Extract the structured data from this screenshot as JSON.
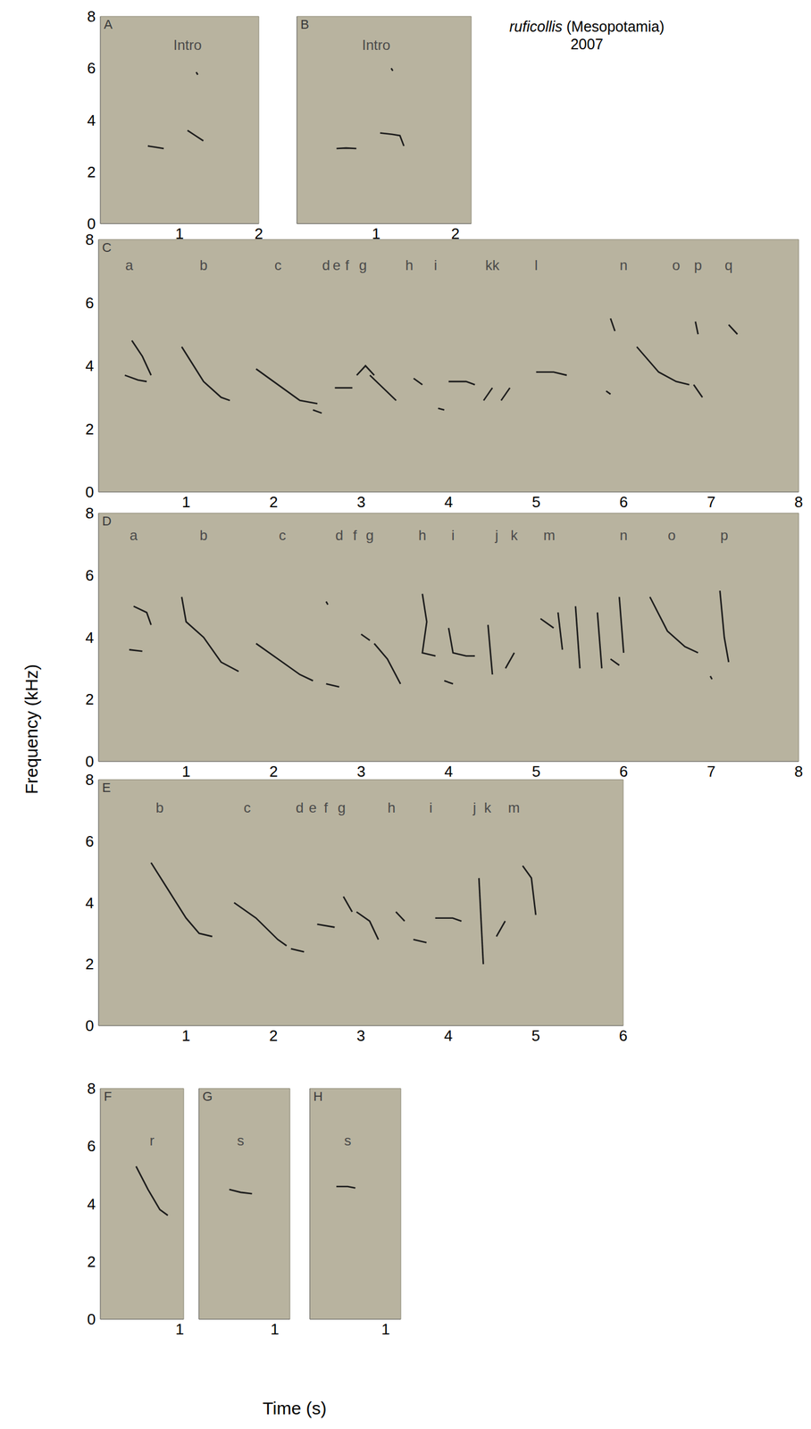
{
  "title": "ruficollis (Mesopotamia)",
  "subtitle": "2007",
  "y_label": "Frequency (kHz)",
  "x_label": "Time (s)",
  "chart_data": [
    {
      "type": "line",
      "label": "A",
      "color": "#1c1c1c",
      "xlim": [
        0,
        2
      ],
      "xticks": [
        1,
        2
      ],
      "ylim": [
        0,
        8
      ],
      "yticks": [
        0,
        2,
        4,
        6,
        8
      ],
      "series": [
        {
          "x": [
            0.6,
            0.7,
            0.8
          ],
          "values": [
            3.0,
            2.95,
            2.9
          ]
        },
        {
          "x": [
            1.1,
            1.2,
            1.3
          ],
          "values": [
            3.6,
            3.4,
            3.2
          ]
        },
        {
          "x": [
            1.21,
            1.23
          ],
          "values": [
            5.85,
            5.75
          ]
        }
      ],
      "annotations": [
        {
          "text": "Intro",
          "x": 1.1,
          "y": 6.9
        }
      ]
    },
    {
      "type": "line",
      "label": "B",
      "color": "#1c1c1c",
      "tick_labels": "x",
      "xlim": [
        0,
        2.2
      ],
      "xticks": [
        1,
        2
      ],
      "ylim": [
        0,
        8
      ],
      "series": [
        {
          "x": [
            0.5,
            0.62,
            0.75
          ],
          "values": [
            2.9,
            2.92,
            2.9
          ]
        },
        {
          "x": [
            1.05,
            1.2,
            1.3,
            1.35
          ],
          "values": [
            3.5,
            3.45,
            3.4,
            3.0
          ]
        },
        {
          "x": [
            1.19,
            1.21
          ],
          "values": [
            6.0,
            5.9
          ]
        }
      ],
      "annotations": [
        {
          "text": "Intro",
          "x": 1.0,
          "y": 6.9
        }
      ]
    },
    {
      "type": "line",
      "label": "C",
      "color": "#1c1c1c",
      "xlim": [
        0,
        8
      ],
      "xticks": [
        1,
        2,
        3,
        4,
        5,
        6,
        7,
        8
      ],
      "ylim": [
        0,
        8
      ],
      "yticks": [
        0,
        2,
        4,
        6,
        8
      ],
      "series": [
        {
          "x": [
            0.38,
            0.5,
            0.6
          ],
          "values": [
            4.8,
            4.3,
            3.7
          ]
        },
        {
          "x": [
            0.3,
            0.45,
            0.55
          ],
          "values": [
            3.7,
            3.55,
            3.5
          ]
        },
        {
          "x": [
            0.95,
            1.2,
            1.4,
            1.5
          ],
          "values": [
            4.6,
            3.5,
            3.0,
            2.9
          ]
        },
        {
          "x": [
            1.8,
            2.0,
            2.3,
            2.5
          ],
          "values": [
            3.9,
            3.5,
            2.9,
            2.8
          ]
        },
        {
          "x": [
            2.45,
            2.55
          ],
          "values": [
            2.6,
            2.5
          ]
        },
        {
          "x": [
            2.7,
            2.9
          ],
          "values": [
            3.3,
            3.3
          ]
        },
        {
          "x": [
            2.95,
            3.05,
            3.15
          ],
          "values": [
            3.7,
            4.0,
            3.7
          ]
        },
        {
          "x": [
            3.1,
            3.25,
            3.4
          ],
          "values": [
            3.7,
            3.3,
            2.9
          ]
        },
        {
          "x": [
            3.6,
            3.7
          ],
          "values": [
            3.6,
            3.4
          ]
        },
        {
          "x": [
            3.88,
            3.95
          ],
          "values": [
            2.65,
            2.6
          ]
        },
        {
          "x": [
            4.0,
            4.2,
            4.3
          ],
          "values": [
            3.5,
            3.5,
            3.4
          ]
        },
        {
          "x": [
            4.4,
            4.5
          ],
          "values": [
            2.9,
            3.3
          ]
        },
        {
          "x": [
            4.6,
            4.7
          ],
          "values": [
            2.9,
            3.3
          ]
        },
        {
          "x": [
            5.0,
            5.2,
            5.35
          ],
          "values": [
            3.8,
            3.8,
            3.7
          ]
        },
        {
          "x": [
            5.85,
            5.9
          ],
          "values": [
            5.5,
            5.1
          ]
        },
        {
          "x": [
            5.8,
            5.85
          ],
          "values": [
            3.2,
            3.1
          ]
        },
        {
          "x": [
            6.15,
            6.4,
            6.6,
            6.75
          ],
          "values": [
            4.6,
            3.8,
            3.5,
            3.4
          ]
        },
        {
          "x": [
            6.82,
            6.85
          ],
          "values": [
            5.4,
            5.0
          ]
        },
        {
          "x": [
            6.8,
            6.9
          ],
          "values": [
            3.4,
            3.0
          ]
        },
        {
          "x": [
            7.2,
            7.3
          ],
          "values": [
            5.3,
            5.0
          ]
        }
      ],
      "annotations": [
        {
          "text": "a",
          "x": 0.35,
          "y": 7.2
        },
        {
          "text": "b",
          "x": 1.2,
          "y": 7.2
        },
        {
          "text": "c",
          "x": 2.05,
          "y": 7.2
        },
        {
          "text": "d",
          "x": 2.6,
          "y": 7.2
        },
        {
          "text": "e",
          "x": 2.72,
          "y": 7.2
        },
        {
          "text": "f",
          "x": 2.84,
          "y": 7.2
        },
        {
          "text": "g",
          "x": 3.02,
          "y": 7.2
        },
        {
          "text": "h",
          "x": 3.55,
          "y": 7.2
        },
        {
          "text": "i",
          "x": 3.85,
          "y": 7.2
        },
        {
          "text": "kk",
          "x": 4.5,
          "y": 7.2
        },
        {
          "text": "l",
          "x": 5.0,
          "y": 7.2
        },
        {
          "text": "n",
          "x": 6.0,
          "y": 7.2
        },
        {
          "text": "o",
          "x": 6.6,
          "y": 7.2
        },
        {
          "text": "p",
          "x": 6.85,
          "y": 7.2
        },
        {
          "text": "q",
          "x": 7.2,
          "y": 7.2
        }
      ]
    },
    {
      "type": "line",
      "label": "D",
      "color": "#1c1c1c",
      "xlim": [
        0,
        8
      ],
      "xticks": [
        1,
        2,
        3,
        4,
        5,
        6,
        7,
        8
      ],
      "ylim": [
        0,
        8
      ],
      "yticks": [
        0,
        2,
        4,
        6,
        8
      ],
      "series": [
        {
          "x": [
            0.4,
            0.55,
            0.6
          ],
          "values": [
            5.0,
            4.8,
            4.4
          ]
        },
        {
          "x": [
            0.35,
            0.5
          ],
          "values": [
            3.6,
            3.55
          ]
        },
        {
          "x": [
            0.95,
            1.0,
            1.2,
            1.4,
            1.6
          ],
          "values": [
            5.3,
            4.5,
            4.0,
            3.2,
            2.9
          ]
        },
        {
          "x": [
            1.8,
            2.1,
            2.3,
            2.45
          ],
          "values": [
            3.8,
            3.2,
            2.8,
            2.6
          ]
        },
        {
          "x": [
            2.6,
            2.75
          ],
          "values": [
            2.5,
            2.4
          ]
        },
        {
          "x": [
            2.6,
            2.62
          ],
          "values": [
            5.15,
            5.05
          ]
        },
        {
          "x": [
            3.0,
            3.1
          ],
          "values": [
            4.1,
            3.9
          ]
        },
        {
          "x": [
            3.15,
            3.3,
            3.45
          ],
          "values": [
            3.8,
            3.3,
            2.5
          ]
        },
        {
          "x": [
            3.7,
            3.75,
            3.7,
            3.85
          ],
          "values": [
            5.4,
            4.5,
            3.5,
            3.4
          ]
        },
        {
          "x": [
            4.0,
            4.05,
            4.2,
            4.3
          ],
          "values": [
            4.3,
            3.5,
            3.4,
            3.4
          ]
        },
        {
          "x": [
            3.95,
            4.05
          ],
          "values": [
            2.6,
            2.5
          ]
        },
        {
          "x": [
            4.45,
            4.5
          ],
          "values": [
            4.4,
            2.8
          ]
        },
        {
          "x": [
            4.65,
            4.75
          ],
          "values": [
            3.0,
            3.5
          ]
        },
        {
          "x": [
            5.05,
            5.2
          ],
          "values": [
            4.6,
            4.3
          ]
        },
        {
          "x": [
            5.25,
            5.3
          ],
          "values": [
            4.8,
            3.6
          ]
        },
        {
          "x": [
            5.45,
            5.5
          ],
          "values": [
            5.0,
            3.0
          ]
        },
        {
          "x": [
            5.7,
            5.75
          ],
          "values": [
            4.8,
            3.0
          ]
        },
        {
          "x": [
            5.95,
            6.0
          ],
          "values": [
            5.3,
            3.5
          ]
        },
        {
          "x": [
            5.85,
            5.95
          ],
          "values": [
            3.3,
            3.1
          ]
        },
        {
          "x": [
            6.3,
            6.5,
            6.7,
            6.85
          ],
          "values": [
            5.3,
            4.2,
            3.7,
            3.5
          ]
        },
        {
          "x": [
            7.1,
            7.15,
            7.2
          ],
          "values": [
            5.5,
            4.0,
            3.2
          ]
        },
        {
          "x": [
            6.99,
            7.01
          ],
          "values": [
            2.75,
            2.65
          ]
        }
      ],
      "annotations": [
        {
          "text": "a",
          "x": 0.4,
          "y": 7.3
        },
        {
          "text": "b",
          "x": 1.2,
          "y": 7.3
        },
        {
          "text": "c",
          "x": 2.1,
          "y": 7.3
        },
        {
          "text": "d",
          "x": 2.75,
          "y": 7.3
        },
        {
          "text": "f",
          "x": 2.93,
          "y": 7.3
        },
        {
          "text": "g",
          "x": 3.1,
          "y": 7.3
        },
        {
          "text": "h",
          "x": 3.7,
          "y": 7.3
        },
        {
          "text": "i",
          "x": 4.05,
          "y": 7.3
        },
        {
          "text": "j",
          "x": 4.55,
          "y": 7.3
        },
        {
          "text": "k",
          "x": 4.75,
          "y": 7.3
        },
        {
          "text": "m",
          "x": 5.15,
          "y": 7.3
        },
        {
          "text": "n",
          "x": 6.0,
          "y": 7.3
        },
        {
          "text": "o",
          "x": 6.55,
          "y": 7.3
        },
        {
          "text": "p",
          "x": 7.15,
          "y": 7.3
        }
      ]
    },
    {
      "type": "line",
      "label": "E",
      "color": "#1c1c1c",
      "xlim": [
        0,
        6
      ],
      "xticks": [
        1,
        2,
        3,
        4,
        5,
        6
      ],
      "ylim": [
        0,
        8
      ],
      "yticks": [
        0,
        2,
        4,
        6,
        8
      ],
      "series": [
        {
          "x": [
            0.6,
            0.8,
            1.0,
            1.15,
            1.3
          ],
          "values": [
            5.3,
            4.4,
            3.5,
            3.0,
            2.9
          ]
        },
        {
          "x": [
            1.55,
            1.8,
            2.05,
            2.15
          ],
          "values": [
            4.0,
            3.5,
            2.8,
            2.6
          ]
        },
        {
          "x": [
            2.2,
            2.35
          ],
          "values": [
            2.5,
            2.4
          ]
        },
        {
          "x": [
            2.5,
            2.7
          ],
          "values": [
            3.3,
            3.2
          ]
        },
        {
          "x": [
            2.8,
            2.9
          ],
          "values": [
            4.2,
            3.7
          ]
        },
        {
          "x": [
            2.95,
            3.1,
            3.2
          ],
          "values": [
            3.7,
            3.4,
            2.8
          ]
        },
        {
          "x": [
            3.4,
            3.5
          ],
          "values": [
            3.7,
            3.4
          ]
        },
        {
          "x": [
            3.6,
            3.75
          ],
          "values": [
            2.8,
            2.7
          ]
        },
        {
          "x": [
            3.85,
            4.05,
            4.15
          ],
          "values": [
            3.5,
            3.5,
            3.4
          ]
        },
        {
          "x": [
            4.35,
            4.4
          ],
          "values": [
            4.8,
            2.0
          ]
        },
        {
          "x": [
            4.55,
            4.65
          ],
          "values": [
            2.9,
            3.4
          ]
        },
        {
          "x": [
            4.85,
            4.95,
            5.0
          ],
          "values": [
            5.2,
            4.8,
            3.6
          ]
        }
      ],
      "annotations": [
        {
          "text": "b",
          "x": 0.7,
          "y": 7.1
        },
        {
          "text": "c",
          "x": 1.7,
          "y": 7.1
        },
        {
          "text": "d",
          "x": 2.3,
          "y": 7.1
        },
        {
          "text": "e",
          "x": 2.45,
          "y": 7.1
        },
        {
          "text": "f",
          "x": 2.6,
          "y": 7.1
        },
        {
          "text": "g",
          "x": 2.78,
          "y": 7.1
        },
        {
          "text": "h",
          "x": 3.35,
          "y": 7.1
        },
        {
          "text": "i",
          "x": 3.8,
          "y": 7.1
        },
        {
          "text": "j",
          "x": 4.3,
          "y": 7.1
        },
        {
          "text": "k",
          "x": 4.45,
          "y": 7.1
        },
        {
          "text": "m",
          "x": 4.75,
          "y": 7.1
        }
      ]
    },
    {
      "type": "line",
      "label": "F",
      "color": "#1c1c1c",
      "xlim": [
        0,
        1.05
      ],
      "xticks": [
        1
      ],
      "ylim": [
        0,
        8
      ],
      "yticks": [
        0,
        2,
        4,
        6,
        8
      ],
      "series": [
        {
          "x": [
            0.45,
            0.6,
            0.75,
            0.85
          ],
          "values": [
            5.3,
            4.5,
            3.8,
            3.6
          ]
        }
      ],
      "annotations": [
        {
          "text": "r",
          "x": 0.65,
          "y": 6.2
        }
      ]
    },
    {
      "type": "line",
      "label": "G",
      "color": "#1c1c1c",
      "tick_labels": "x",
      "xlim": [
        0,
        1.2
      ],
      "xticks": [
        1
      ],
      "ylim": [
        0,
        8
      ],
      "series": [
        {
          "x": [
            0.4,
            0.55,
            0.7
          ],
          "values": [
            4.5,
            4.4,
            4.35
          ]
        }
      ],
      "annotations": [
        {
          "text": "s",
          "x": 0.55,
          "y": 6.2
        }
      ]
    },
    {
      "type": "line",
      "label": "H",
      "color": "#1c1c1c",
      "tick_labels": "x",
      "xlim": [
        0,
        1.2
      ],
      "xticks": [
        1
      ],
      "ylim": [
        0,
        8
      ],
      "series": [
        {
          "x": [
            0.35,
            0.5,
            0.6
          ],
          "values": [
            4.6,
            4.6,
            4.55
          ]
        }
      ],
      "annotations": [
        {
          "text": "s",
          "x": 0.5,
          "y": 6.2
        }
      ]
    }
  ]
}
